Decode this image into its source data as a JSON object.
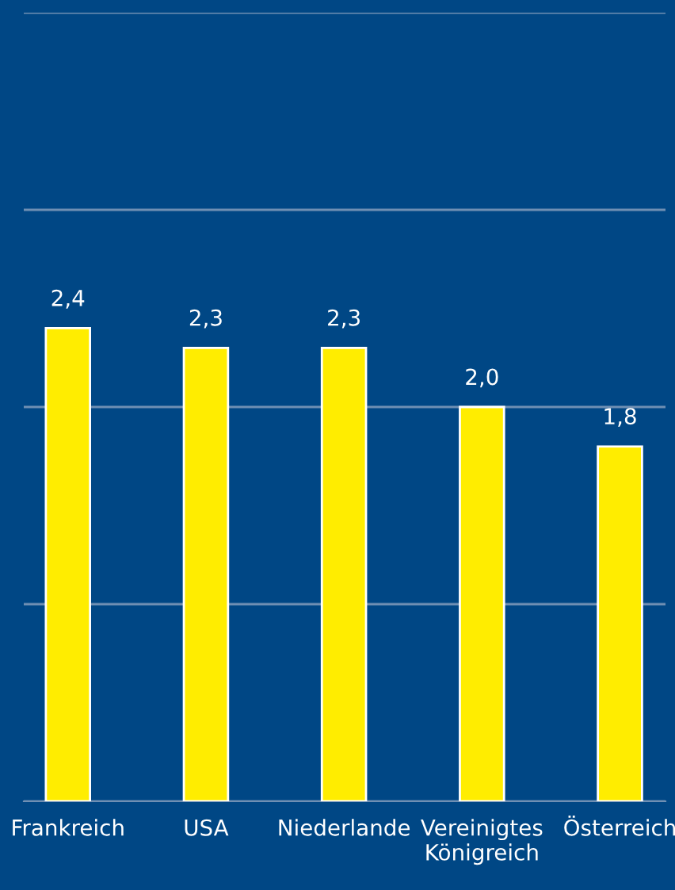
{
  "chart_data": {
    "type": "bar",
    "categories": [
      "Frankreich",
      "USA",
      "Niederlande",
      "Vereinigtes Königreich",
      "Österreich"
    ],
    "values": [
      2.4,
      2.3,
      2.3,
      2.0,
      1.8
    ],
    "color": "#ffed00",
    "ylim": [
      0,
      4
    ],
    "yticks": [
      {
        "value": 0,
        "label": null
      },
      {
        "value": 1,
        "label": null
      },
      {
        "value": 2,
        "label": null
      },
      {
        "value": 3,
        "label": null
      },
      {
        "value": 4,
        "label": null
      }
    ],
    "value_labels": [
      "2,4",
      "2,3",
      "2,3",
      "2,0",
      "1,8"
    ],
    "grid": "y",
    "tick_labels": "x"
  }
}
